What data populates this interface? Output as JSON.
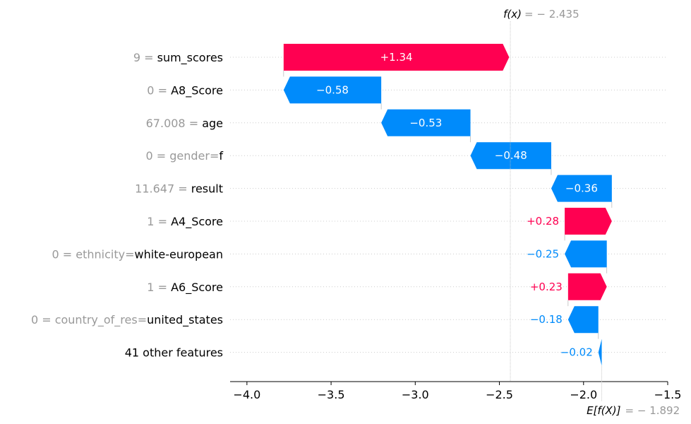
{
  "chart_data": {
    "type": "waterfall",
    "fx_label": "f(x)",
    "fx_value": "= − 2.435",
    "base_label": "E[f(X)]",
    "base_value": "= − 1.892",
    "base": -1.892,
    "output": -2.435,
    "xlim": [
      -4.1,
      -1.5
    ],
    "xticks": [
      -4.0,
      -3.5,
      -3.0,
      -2.5,
      -2.0,
      -1.5
    ],
    "xtick_labels": [
      "−4.0",
      "−3.5",
      "−3.0",
      "−2.5",
      "−2.0",
      "−1.5"
    ],
    "features": [
      {
        "value_text": "9 =",
        "name": "sum_scores",
        "contribution": 1.34,
        "label": "+1.34"
      },
      {
        "value_text": "0 =",
        "name": "A8_Score",
        "contribution": -0.58,
        "label": "−0.58"
      },
      {
        "value_text": "67.008 =",
        "name": "age",
        "contribution": -0.53,
        "label": "−0.53"
      },
      {
        "value_text": "0 = gender=",
        "name": "f",
        "contribution": -0.48,
        "label": "−0.48"
      },
      {
        "value_text": "11.647 =",
        "name": "result",
        "contribution": -0.36,
        "label": "−0.36"
      },
      {
        "value_text": "1 =",
        "name": "A4_Score",
        "contribution": 0.28,
        "label": "+0.28"
      },
      {
        "value_text": "0 = ethnicity=",
        "name": "white-european",
        "contribution": -0.25,
        "label": "−0.25"
      },
      {
        "value_text": "1 =",
        "name": "A6_Score",
        "contribution": 0.23,
        "label": "+0.23"
      },
      {
        "value_text": "0 = country_of_res=",
        "name": "united_states",
        "contribution": -0.18,
        "label": "−0.18"
      },
      {
        "value_text": "",
        "name": "41 other features",
        "contribution": -0.02,
        "label": "−0.02"
      }
    ],
    "colors": {
      "positive": "#ff0051",
      "negative": "#008bfb",
      "value_text": "#999999",
      "name_text": "#000000",
      "gridline": "#cccccc"
    }
  }
}
